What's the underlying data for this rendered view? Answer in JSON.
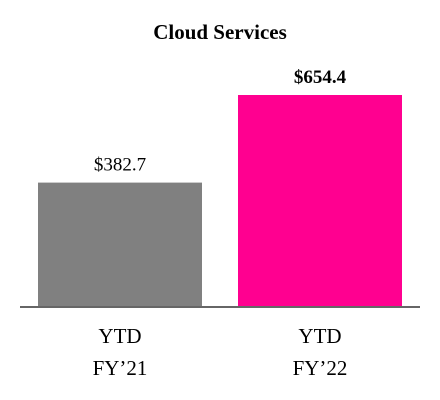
{
  "chart_data": {
    "type": "bar",
    "title": "Cloud Services",
    "categories": [
      "YTD\nFY’21",
      "YTD\nFY’22"
    ],
    "values": [
      382.7,
      654.4
    ],
    "value_labels": [
      "$382.7",
      "$654.4"
    ],
    "value_label_weights": [
      "normal",
      "bold"
    ],
    "colors": [
      "#808080",
      "#ff0090"
    ]
  }
}
